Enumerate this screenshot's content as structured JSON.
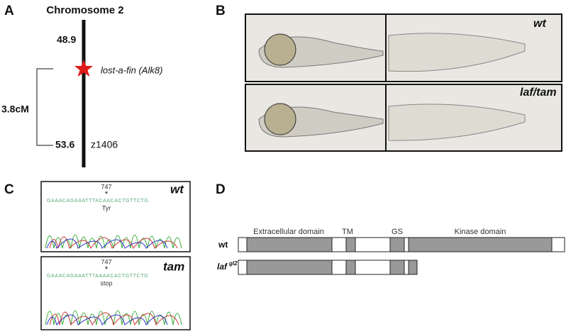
{
  "panels": {
    "A": {
      "label": "A",
      "title": "Chromosome 2",
      "top_marker": 48.9,
      "gene": "lost-a-fin (Alk8)",
      "interval": "3.8cM",
      "bottom_marker": 53.6,
      "bottom_locus": "z1406"
    },
    "B": {
      "label": "B",
      "rows": [
        "wt",
        "laf/tam"
      ]
    },
    "C": {
      "label": "C",
      "traces": [
        {
          "genotype": "wt",
          "position": "747",
          "star": "*",
          "sequence": "GAAACAGAAATTTACAACACTGTTCTG",
          "residue": "Tyr"
        },
        {
          "genotype": "tam",
          "position": "747",
          "star": "*",
          "sequence": "GAAACAGAAATTTAAAACACTGTTCTG",
          "residue": "stop"
        }
      ]
    },
    "D": {
      "label": "D",
      "domains": [
        "Extracellular domain",
        "TM",
        "GS",
        "Kinase domain"
      ],
      "wt": "wt",
      "mutant": "laf",
      "mutant_allele": "gl2"
    }
  }
}
